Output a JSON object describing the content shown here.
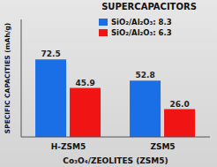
{
  "chart_data": {
    "type": "bar",
    "title": "SUPERCAPACITORS",
    "y_label": "SPECIFIC CAPACITIES (mAh/g)",
    "x_label": "Co₃O₄/ZEOLITES (ZSM5)",
    "categories": [
      "H-ZSM5",
      "ZSM5"
    ],
    "series": [
      {
        "name": "SiO₂/Al₂O₃: 8.3",
        "color": "#1a6fe6",
        "values": [
          72.5,
          52.8
        ]
      },
      {
        "name": "SiO₂/Al₂O₃: 6.3",
        "color": "#f01414",
        "values": [
          45.9,
          26.0
        ],
        "value_labels": [
          "45.9",
          "26.0"
        ]
      }
    ],
    "ylim": [
      0,
      110
    ],
    "data_labels": true,
    "tick_labels": "x",
    "legend": "top-right"
  }
}
